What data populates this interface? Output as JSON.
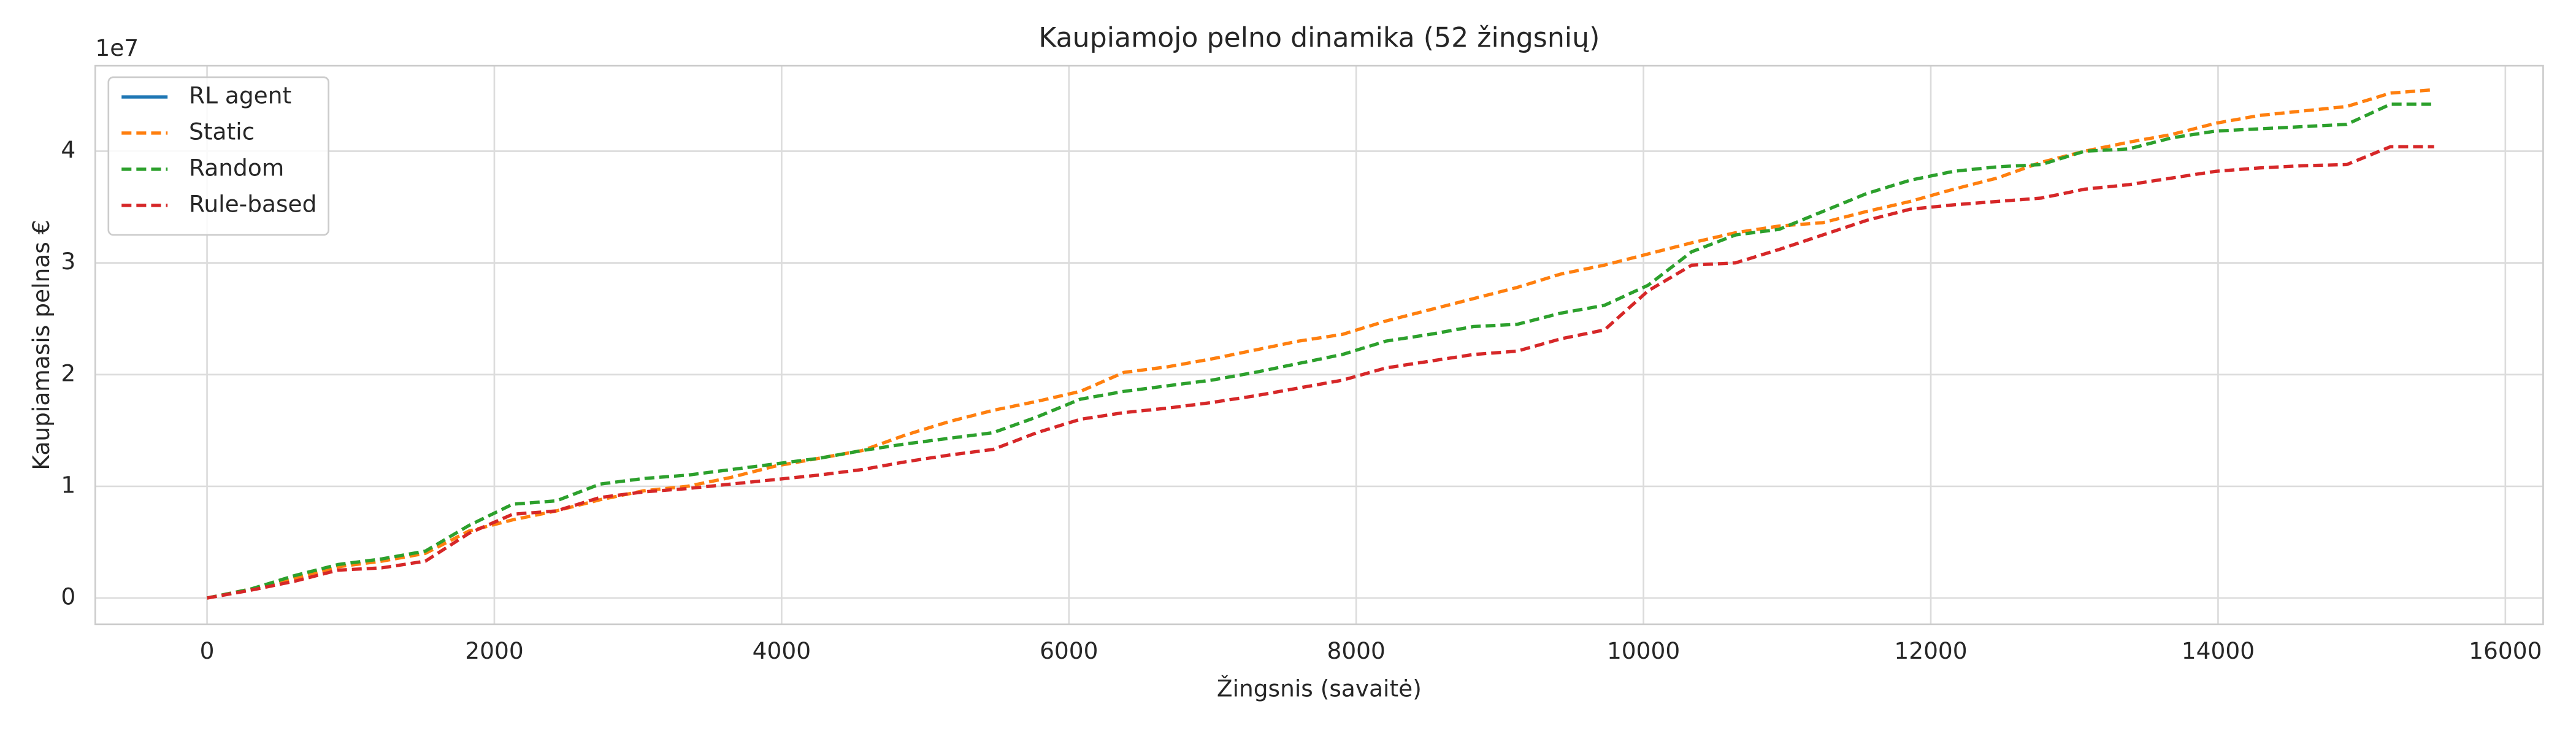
{
  "chart_data": {
    "type": "line",
    "title": "Kaupiamojo pelno dinamika (52 žingsnių)",
    "x_label": "Žingsnis (savaitė)",
    "y_label": "Kaupiamasis pelnas €",
    "y_offset_label": "1e7",
    "x": [
      0,
      304,
      608,
      912,
      1216,
      1520,
      1824,
      2128,
      2432,
      2736,
      3040,
      3344,
      3648,
      3952,
      4256,
      4560,
      4864,
      5168,
      5472,
      5776,
      6080,
      6384,
      6688,
      6992,
      7296,
      7600,
      7904,
      8208,
      8512,
      8816,
      9120,
      9424,
      9728,
      10032,
      10336,
      10640,
      10944,
      11248,
      11552,
      11856,
      12160,
      12464,
      12768,
      13072,
      13376,
      13680,
      13984,
      14288,
      14592,
      14896,
      15200,
      15504
    ],
    "series": [
      {
        "name": "RL agent",
        "color": "#1f77b4",
        "linestyle": "solid",
        "values": [
          null,
          null,
          null,
          null,
          null,
          null,
          null,
          null,
          null,
          null,
          null,
          null,
          null,
          null,
          null,
          null,
          null,
          null,
          null,
          null,
          null,
          null,
          null,
          null,
          null,
          null,
          null,
          null,
          null,
          null,
          null,
          null,
          null,
          null,
          null,
          null,
          null,
          null,
          null,
          null,
          null,
          null,
          null,
          null,
          null,
          null,
          null,
          null,
          null,
          null,
          null,
          null
        ]
      },
      {
        "name": "Static",
        "color": "#ff7f0e",
        "linestyle": "dashed",
        "values": [
          0,
          0.08,
          0.18,
          0.28,
          0.33,
          0.4,
          0.6,
          0.7,
          0.78,
          0.88,
          0.96,
          1.0,
          1.08,
          1.18,
          1.25,
          1.32,
          1.46,
          1.58,
          1.68,
          1.76,
          1.85,
          2.02,
          2.07,
          2.14,
          2.22,
          2.3,
          2.36,
          2.48,
          2.58,
          2.68,
          2.78,
          2.9,
          2.98,
          3.08,
          3.18,
          3.27,
          3.33,
          3.36,
          3.46,
          3.55,
          3.66,
          3.76,
          3.9,
          4.0,
          4.08,
          4.15,
          4.25,
          4.32,
          4.36,
          4.4,
          4.52,
          4.55
        ]
      },
      {
        "name": "Random",
        "color": "#2ca02c",
        "linestyle": "dashed",
        "values": [
          0,
          0.08,
          0.2,
          0.3,
          0.35,
          0.42,
          0.65,
          0.84,
          0.87,
          1.02,
          1.07,
          1.1,
          1.15,
          1.2,
          1.25,
          1.32,
          1.38,
          1.43,
          1.48,
          1.62,
          1.78,
          1.85,
          1.9,
          1.95,
          2.02,
          2.1,
          2.18,
          2.3,
          2.36,
          2.43,
          2.45,
          2.55,
          2.62,
          2.8,
          3.1,
          3.25,
          3.3,
          3.46,
          3.62,
          3.74,
          3.82,
          3.86,
          3.88,
          4.0,
          4.02,
          4.12,
          4.18,
          4.2,
          4.22,
          4.24,
          4.42,
          4.42
        ]
      },
      {
        "name": "Rule-based",
        "color": "#d62728",
        "linestyle": "dashed",
        "values": [
          0,
          0.07,
          0.15,
          0.25,
          0.27,
          0.33,
          0.58,
          0.75,
          0.78,
          0.9,
          0.95,
          0.98,
          1.02,
          1.06,
          1.1,
          1.15,
          1.22,
          1.28,
          1.33,
          1.48,
          1.6,
          1.66,
          1.7,
          1.75,
          1.81,
          1.88,
          1.95,
          2.06,
          2.12,
          2.18,
          2.21,
          2.32,
          2.4,
          2.75,
          2.98,
          3.0,
          3.12,
          3.25,
          3.38,
          3.48,
          3.52,
          3.55,
          3.58,
          3.66,
          3.7,
          3.76,
          3.82,
          3.85,
          3.87,
          3.88,
          4.04,
          4.04
        ]
      }
    ],
    "xlim": [
      -778,
      16263
    ],
    "ylim": [
      -0.235,
      4.765
    ],
    "xticks": [
      0,
      2000,
      4000,
      6000,
      8000,
      10000,
      12000,
      14000,
      16000
    ],
    "yticks": [
      0,
      1,
      2,
      3,
      4
    ],
    "grid": true,
    "legend": "upper left"
  }
}
